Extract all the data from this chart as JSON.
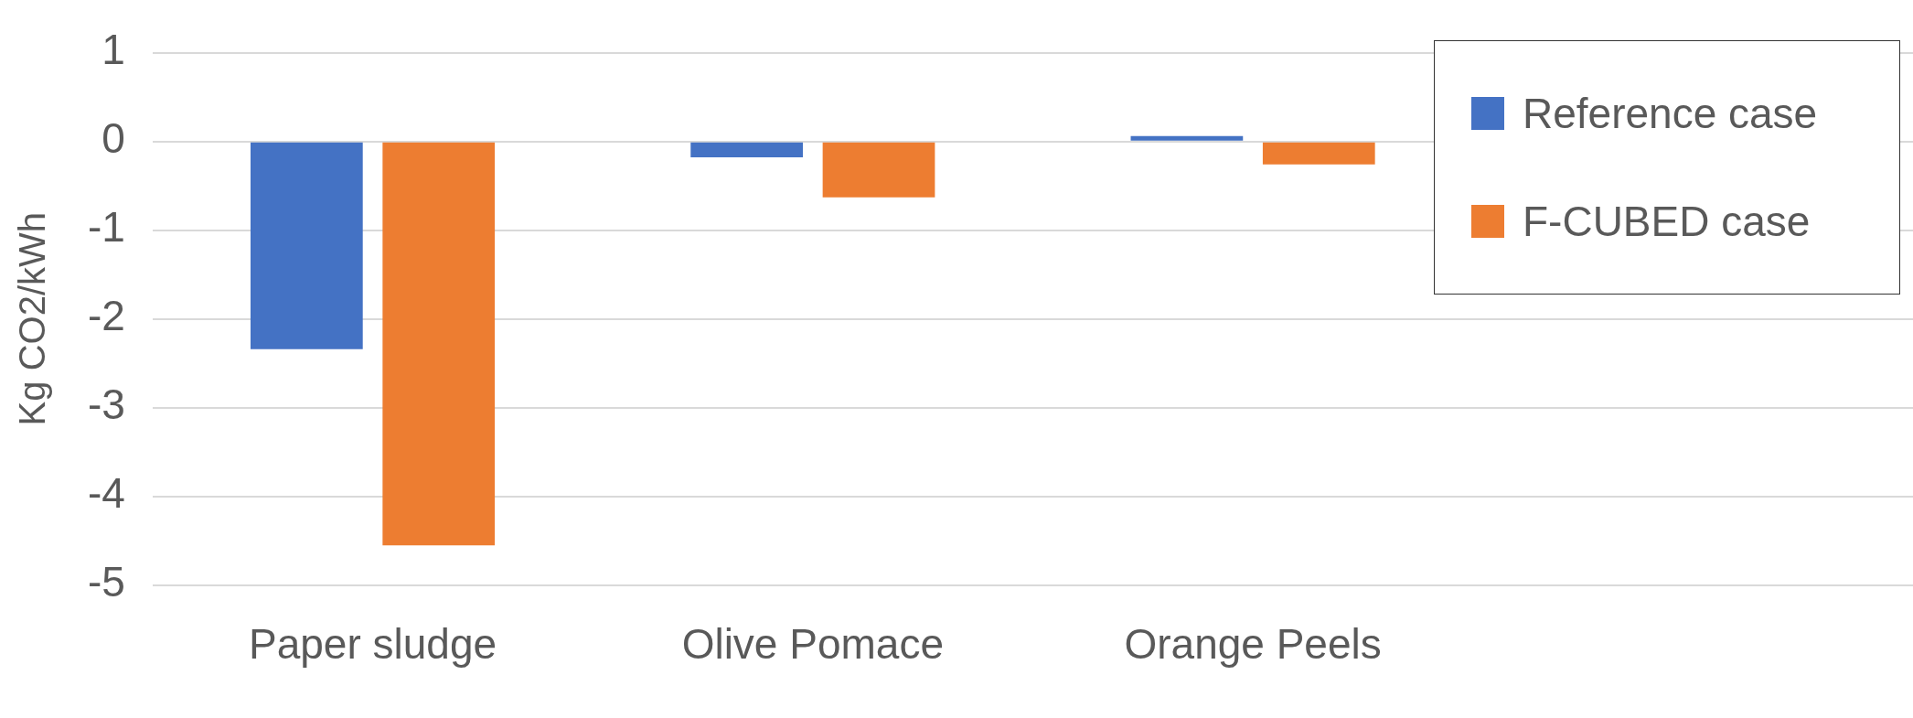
{
  "chart_data": {
    "type": "bar",
    "ylabel": "Kg CO2/kWh",
    "categories": [
      "Paper sludge",
      "Olive Pomace",
      "Orange Peels",
      null
    ],
    "series": [
      {
        "name": "Reference case",
        "color": "#4472c4",
        "values": [
          -2.34,
          -0.18,
          0.06,
          null
        ]
      },
      {
        "name": "F-CUBED case",
        "color": "#ed7d31",
        "values": [
          -4.55,
          -0.63,
          -0.26,
          null
        ]
      }
    ],
    "ylim": [
      -5,
      1
    ],
    "yticks": [
      -5,
      -4,
      -3,
      -2,
      -1,
      0,
      1
    ],
    "grid": "y",
    "legend": "top right"
  }
}
